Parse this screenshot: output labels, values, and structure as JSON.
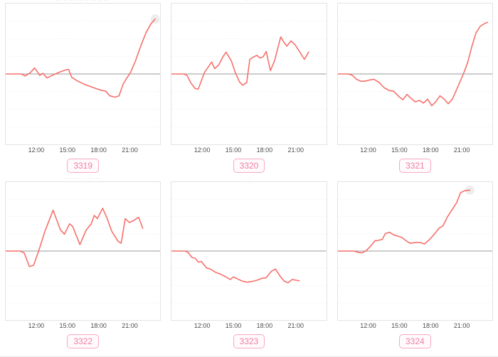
{
  "page": {
    "background": "#ffffff",
    "layout": "3x2 grid of sparkline panels"
  },
  "colors": {
    "line": "#f5706b",
    "zero_line": "#9a9a9a",
    "grid_line": "#ececec",
    "plot_border": "#e3e3e3",
    "axis_label": "#4d4d4d",
    "badge_border": "#f7a9c3",
    "badge_text": "#ee7fa6",
    "badge_bg": "#fffafc",
    "end_marker_halo": "#ededed",
    "title_text": "#a8a8a8"
  },
  "x_ticks": [
    "12:00",
    "15:00",
    "18:00",
    "21:00"
  ],
  "chart_data": [
    {
      "id": "3319",
      "type": "line",
      "title": "··· ·· ··· ···· ·· ··· ·· ···",
      "x_range": [
        9,
        24
      ],
      "ylim": [
        -1,
        1
      ],
      "zero_line": 0,
      "end_halo": true,
      "x_hours": [
        9.0,
        10.5,
        10.9,
        11.4,
        11.8,
        12.0,
        12.3,
        12.6,
        13.0,
        13.4,
        14.1,
        14.8,
        15.1,
        15.4,
        16.0,
        16.7,
        17.4,
        18.1,
        18.7,
        19.1,
        19.6,
        20.0,
        20.4,
        20.8,
        21.1,
        21.6,
        22.1,
        22.6,
        23.1,
        23.5
      ],
      "values": [
        0,
        0,
        -0.03,
        0.02,
        0.09,
        0.05,
        -0.02,
        0.01,
        -0.06,
        -0.03,
        0.02,
        0.06,
        0.07,
        -0.05,
        -0.11,
        -0.16,
        -0.2,
        -0.24,
        -0.26,
        -0.33,
        -0.35,
        -0.33,
        -0.15,
        -0.05,
        0.02,
        0.2,
        0.42,
        0.62,
        0.76,
        0.83
      ]
    },
    {
      "id": "3320",
      "type": "line",
      "title": "· ·",
      "x_range": [
        9,
        24
      ],
      "ylim": [
        -1,
        1
      ],
      "zero_line": 0,
      "end_halo": false,
      "x_hours": [
        9.0,
        10.2,
        10.5,
        10.9,
        11.3,
        11.6,
        12.2,
        12.9,
        13.2,
        13.6,
        14.0,
        14.3,
        14.8,
        15.2,
        15.6,
        15.9,
        16.3,
        16.6,
        17.0,
        17.3,
        17.6,
        17.9,
        18.2,
        18.6,
        19.0,
        19.6,
        19.9,
        20.2,
        20.6,
        21.0,
        21.5,
        21.9,
        22.3
      ],
      "values": [
        0,
        0,
        -0.02,
        -0.14,
        -0.22,
        -0.23,
        0.02,
        0.18,
        0.08,
        0.14,
        0.26,
        0.33,
        0.2,
        0.02,
        -0.12,
        -0.17,
        -0.13,
        0.22,
        0.26,
        0.28,
        0.24,
        0.26,
        0.34,
        0.05,
        0.2,
        0.56,
        0.48,
        0.42,
        0.5,
        0.44,
        0.32,
        0.22,
        0.33
      ]
    },
    {
      "id": "3321",
      "type": "line",
      "title": "",
      "x_range": [
        9,
        24
      ],
      "ylim": [
        -1,
        1
      ],
      "zero_line": 0,
      "end_halo": false,
      "x_hours": [
        9.0,
        10.0,
        10.4,
        10.8,
        11.2,
        11.6,
        12.1,
        12.5,
        13.0,
        13.5,
        14.0,
        14.4,
        14.9,
        15.3,
        15.7,
        16.1,
        16.5,
        16.9,
        17.3,
        17.7,
        18.1,
        18.5,
        18.9,
        19.3,
        19.7,
        20.1,
        20.5,
        20.9,
        21.3,
        21.6,
        22.0,
        22.4,
        22.8,
        23.2,
        23.5
      ],
      "values": [
        0,
        0,
        -0.02,
        -0.08,
        -0.11,
        -0.11,
        -0.09,
        -0.08,
        -0.13,
        -0.21,
        -0.25,
        -0.26,
        -0.34,
        -0.39,
        -0.31,
        -0.37,
        -0.42,
        -0.4,
        -0.44,
        -0.38,
        -0.48,
        -0.42,
        -0.33,
        -0.38,
        -0.45,
        -0.38,
        -0.24,
        -0.1,
        0.05,
        0.18,
        0.42,
        0.62,
        0.72,
        0.76,
        0.78
      ]
    },
    {
      "id": "3322",
      "type": "line",
      "title": "·· ·· ··· ·· ··· ···",
      "x_range": [
        9,
        24
      ],
      "ylim": [
        -1,
        1
      ],
      "zero_line": 0,
      "end_halo": false,
      "x_hours": [
        9.0,
        10.4,
        10.8,
        11.3,
        11.7,
        12.2,
        12.8,
        13.6,
        14.3,
        14.7,
        15.2,
        15.5,
        16.2,
        16.8,
        17.3,
        17.6,
        17.9,
        18.4,
        18.8,
        19.3,
        19.9,
        20.2,
        20.6,
        21.0,
        21.4,
        21.9,
        22.3
      ],
      "values": [
        0,
        0,
        -0.03,
        -0.24,
        -0.22,
        0.0,
        0.3,
        0.63,
        0.33,
        0.26,
        0.42,
        0.38,
        0.1,
        0.32,
        0.42,
        0.55,
        0.5,
        0.66,
        0.52,
        0.3,
        0.15,
        0.12,
        0.5,
        0.44,
        0.47,
        0.52,
        0.35
      ]
    },
    {
      "id": "3323",
      "type": "line",
      "title": "· · ·",
      "x_range": [
        9,
        24
      ],
      "ylim": [
        -1,
        1
      ],
      "zero_line": 0,
      "end_halo": false,
      "x_hours": [
        9.0,
        10.3,
        10.6,
        11.0,
        11.3,
        11.6,
        11.9,
        12.4,
        12.8,
        13.3,
        13.8,
        14.3,
        14.7,
        15.0,
        15.3,
        15.8,
        16.3,
        16.8,
        17.3,
        17.8,
        18.2,
        18.7,
        19.1,
        19.5,
        19.9,
        20.3,
        20.7,
        21.1,
        21.4
      ],
      "values": [
        0,
        0,
        -0.02,
        -0.1,
        -0.11,
        -0.17,
        -0.16,
        -0.26,
        -0.28,
        -0.33,
        -0.36,
        -0.4,
        -0.44,
        -0.4,
        -0.42,
        -0.46,
        -0.48,
        -0.47,
        -0.45,
        -0.42,
        -0.41,
        -0.31,
        -0.28,
        -0.38,
        -0.46,
        -0.49,
        -0.44,
        -0.45,
        -0.46
      ]
    },
    {
      "id": "3324",
      "type": "line",
      "title": "",
      "x_range": [
        9,
        24
      ],
      "ylim": [
        -1,
        1
      ],
      "zero_line": 0,
      "end_halo": true,
      "x_hours": [
        9.0,
        10.5,
        11.0,
        11.3,
        11.7,
        12.2,
        12.6,
        12.8,
        13.3,
        13.6,
        14.0,
        14.4,
        14.8,
        15.2,
        15.6,
        16.0,
        16.5,
        17.0,
        17.4,
        17.9,
        18.3,
        18.8,
        19.2,
        19.6,
        20.0,
        20.5,
        20.9,
        21.3,
        21.8
      ],
      "values": [
        0,
        0,
        -0.02,
        -0.03,
        0,
        0.08,
        0.16,
        0.16,
        0.18,
        0.27,
        0.29,
        0.25,
        0.23,
        0.21,
        0.16,
        0.12,
        0.13,
        0.13,
        0.11,
        0.18,
        0.25,
        0.35,
        0.39,
        0.52,
        0.62,
        0.74,
        0.9,
        0.93,
        0.94
      ]
    }
  ]
}
